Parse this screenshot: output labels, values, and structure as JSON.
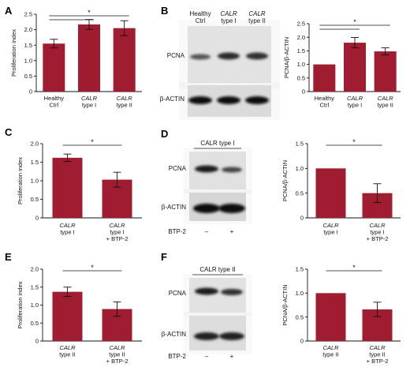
{
  "colors": {
    "bar": "#a01c30",
    "axis": "#111111",
    "blot_bg": "#e8e8e8",
    "blot_band": "#1a1a1a"
  },
  "significance_marker": "*",
  "panels": {
    "A": "A",
    "B": "B",
    "C": "C",
    "D": "D",
    "E": "E",
    "F": "F"
  },
  "blots": {
    "B": {
      "lane_headers": [
        [
          "Healthy",
          "Ctrl"
        ],
        [
          "CALR",
          "type I"
        ],
        [
          "CALR",
          "type II"
        ]
      ],
      "row_labels": [
        "PCNA",
        "β-ACTIN"
      ]
    },
    "D": {
      "header": "CALR type I",
      "row_labels": [
        "PCNA",
        "β-ACTIN"
      ],
      "treatment_label": "BTP-2",
      "treatment_marks": [
        "–",
        "+"
      ]
    },
    "F": {
      "header": "CALR type II",
      "row_labels": [
        "PCNA",
        "β-ACTIN"
      ],
      "treatment_label": "BTP-2",
      "treatment_marks": [
        "–",
        "+"
      ]
    }
  },
  "chart_data": [
    {
      "id": "A",
      "type": "bar",
      "categories": [
        [
          "Healthy",
          "Ctrl"
        ],
        [
          "CALR",
          "type I"
        ],
        [
          "CALR",
          "type II"
        ]
      ],
      "values": [
        1.55,
        2.17,
        2.05
      ],
      "errors": [
        0.14,
        0.16,
        0.24
      ],
      "ylabel": "Proliferation index",
      "ylim": [
        0,
        2.5
      ],
      "yticks": [
        0,
        0.5,
        1.0,
        1.5,
        2.0,
        2.5
      ],
      "ytick_labels": [
        "0",
        "0.5",
        "1.0",
        "1.5",
        "2.0",
        "2.5"
      ],
      "significance": [
        [
          0,
          1
        ],
        [
          0,
          2
        ]
      ]
    },
    {
      "id": "B",
      "type": "bar",
      "categories": [
        [
          "Healthy",
          "Ctrl"
        ],
        [
          "CALR",
          "type I"
        ],
        [
          "CALR",
          "type II"
        ]
      ],
      "values": [
        1.0,
        1.8,
        1.48
      ],
      "errors": [
        0,
        0.19,
        0.13
      ],
      "ylabel": "PCNA/β-ACTIN",
      "ylim": [
        0,
        2.5
      ],
      "yticks": [
        0,
        0.5,
        1.0,
        1.5,
        2.0,
        2.5
      ],
      "ytick_labels": [
        "0",
        "0.5",
        "1.0",
        "1.5",
        "2.0",
        "2.5"
      ],
      "significance": [
        [
          0,
          1
        ],
        [
          0,
          2
        ]
      ]
    },
    {
      "id": "C",
      "type": "bar",
      "categories": [
        [
          "CALR",
          "type I"
        ],
        [
          "CALR",
          "type I",
          "+ BTP-2"
        ]
      ],
      "values": [
        1.62,
        1.03
      ],
      "errors": [
        0.1,
        0.2
      ],
      "ylabel": "Proliferation index",
      "ylim": [
        0,
        2.0
      ],
      "yticks": [
        0,
        0.5,
        1.0,
        1.5,
        2.0
      ],
      "ytick_labels": [
        "0",
        "0.5",
        "1.0",
        "1.5",
        "2.0"
      ],
      "significance": [
        [
          0,
          1
        ]
      ]
    },
    {
      "id": "D",
      "type": "bar",
      "categories": [
        [
          "CALR",
          "type I"
        ],
        [
          "CALR",
          "type I",
          "+ BTP-2"
        ]
      ],
      "values": [
        1.0,
        0.5
      ],
      "errors": [
        0,
        0.19
      ],
      "ylabel": "PCNA/β-ACTIN",
      "ylim": [
        0,
        1.5
      ],
      "yticks": [
        0,
        0.5,
        1.0,
        1.5
      ],
      "ytick_labels": [
        "0",
        "0.5",
        "1.0",
        "1.5"
      ],
      "significance": [
        [
          0,
          1
        ]
      ]
    },
    {
      "id": "E",
      "type": "bar",
      "categories": [
        [
          "CALR",
          "type II"
        ],
        [
          "CALR",
          "type II",
          "+ BTP-2"
        ]
      ],
      "values": [
        1.37,
        0.89
      ],
      "errors": [
        0.13,
        0.2
      ],
      "ylabel": "Proliferation index",
      "ylim": [
        0,
        2.0
      ],
      "yticks": [
        0,
        0.5,
        1.0,
        1.5,
        2.0
      ],
      "ytick_labels": [
        "0",
        "0.5",
        "1.0",
        "1.5",
        "2.0"
      ],
      "significance": [
        [
          0,
          1
        ]
      ]
    },
    {
      "id": "F",
      "type": "bar",
      "categories": [
        [
          "CALR",
          "type II"
        ],
        [
          "CALR",
          "type II",
          "+ BTP-2"
        ]
      ],
      "values": [
        1.0,
        0.66
      ],
      "errors": [
        0,
        0.15
      ],
      "ylabel": "PCNA/β-ACTIN",
      "ylim": [
        0,
        1.5
      ],
      "yticks": [
        0,
        0.5,
        1.0,
        1.5
      ],
      "ytick_labels": [
        "0",
        "0.5",
        "1.0",
        "1.5"
      ],
      "significance": [
        [
          0,
          1
        ]
      ]
    }
  ]
}
